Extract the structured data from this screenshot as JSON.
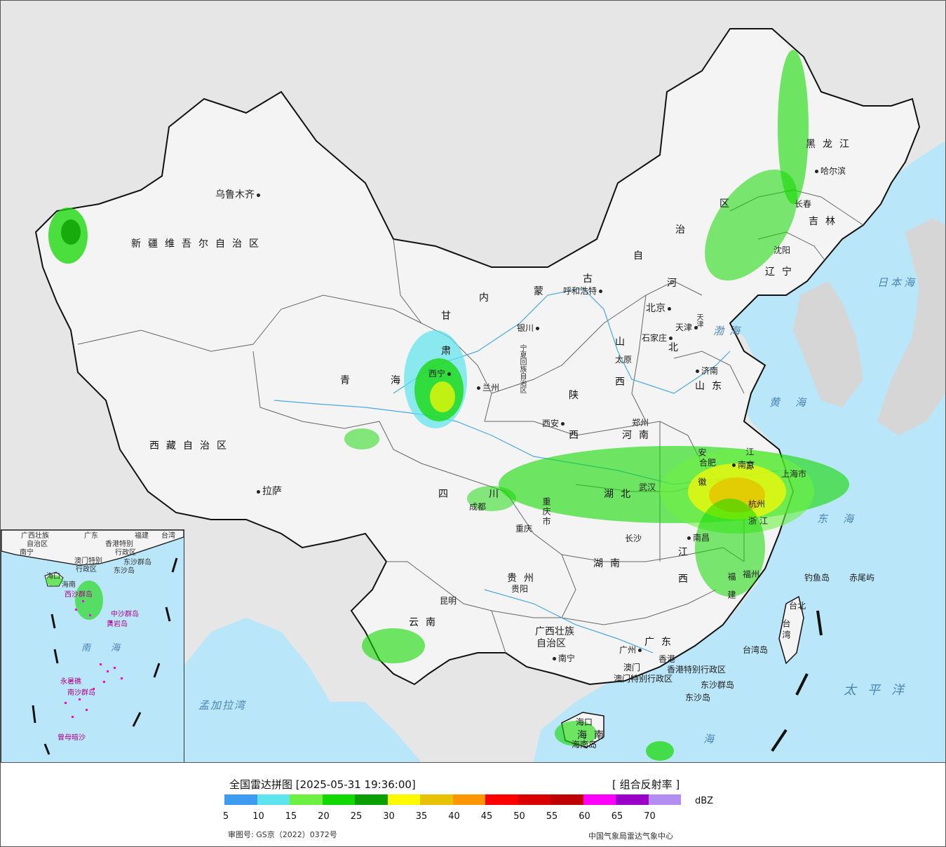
{
  "legend": {
    "title": "全国雷达拼图 [2025-05-31 19:36:00]",
    "product": "[ 组合反射率 ]",
    "unit": "dBZ",
    "colors": [
      "#3d9cf0",
      "#5de4ec",
      "#6ef043",
      "#12d800",
      "#0a9e00",
      "#fffa00",
      "#e6c200",
      "#ff9600",
      "#ff0000",
      "#da0000",
      "#c00000",
      "#ff00ff",
      "#9a00c8",
      "#b28ef0"
    ],
    "ticks": [
      "5",
      "10",
      "15",
      "20",
      "25",
      "30",
      "35",
      "40",
      "45",
      "50",
      "55",
      "60",
      "65",
      "70"
    ],
    "review_no": "审图号: GS京（2022）0372号",
    "credit": "中国气象局雷达气象中心"
  },
  "map": {
    "provinces": [
      {
        "id": "xinjiang",
        "text": "新疆维吾尔自治区"
      },
      {
        "id": "xizang",
        "text": "西藏自治区"
      },
      {
        "id": "qinghai1",
        "text": "青"
      },
      {
        "id": "qinghai2",
        "text": "海"
      },
      {
        "id": "gansu1",
        "text": "甘"
      },
      {
        "id": "nmg1",
        "text": "内"
      },
      {
        "id": "nmg2",
        "text": "蒙"
      },
      {
        "id": "nmg3",
        "text": "古"
      },
      {
        "id": "nmg4",
        "text": "自"
      },
      {
        "id": "nmg5",
        "text": "治"
      },
      {
        "id": "nmg6",
        "text": "区"
      },
      {
        "id": "hlj",
        "text": "黑龙江"
      },
      {
        "id": "jilin",
        "text": "吉林"
      },
      {
        "id": "liaoning",
        "text": "辽宁"
      },
      {
        "id": "hebei1",
        "text": "河"
      },
      {
        "id": "hebei2",
        "text": "北"
      },
      {
        "id": "shanxi1",
        "text": "山"
      },
      {
        "id": "shanxi2",
        "text": "西"
      },
      {
        "id": "shandong",
        "text": "山东"
      },
      {
        "id": "henan",
        "text": "河南"
      },
      {
        "id": "shaanxi1",
        "text": "陕"
      },
      {
        "id": "shaanxi2",
        "text": "西"
      },
      {
        "id": "sichuan1",
        "text": "四"
      },
      {
        "id": "sichuan2",
        "text": "川"
      },
      {
        "id": "chongqing",
        "text": "重庆市"
      },
      {
        "id": "hubei",
        "text": "湖北"
      },
      {
        "id": "hunan",
        "text": "湖南"
      },
      {
        "id": "jiangxi1",
        "text": "江"
      },
      {
        "id": "jiangxi2",
        "text": "西"
      },
      {
        "id": "anhui",
        "text": "安徽"
      },
      {
        "id": "jiangsu",
        "text": "江苏"
      },
      {
        "id": "zhejiang",
        "text": "浙江"
      },
      {
        "id": "fujian",
        "text": "福建"
      },
      {
        "id": "guizhou",
        "text": "贵州"
      },
      {
        "id": "yunnan",
        "text": "云南"
      },
      {
        "id": "gx1",
        "text": "广西壮族"
      },
      {
        "id": "gx2",
        "text": "自治区"
      },
      {
        "id": "guangdong",
        "text": "广东"
      },
      {
        "id": "hainan",
        "text": "海南"
      },
      {
        "id": "taiwan",
        "text": "台湾"
      },
      {
        "id": "shanghai",
        "text": "上海市"
      },
      {
        "id": "tianjin",
        "text": "天津"
      },
      {
        "id": "ningxia",
        "text": "宁夏回族自治区"
      },
      {
        "id": "hk",
        "text": "香港特别行政区"
      },
      {
        "id": "macao",
        "text": "澳门特别行政区"
      },
      {
        "id": "gansu2",
        "text": "肃"
      }
    ],
    "cities": [
      {
        "id": "urumqi",
        "text": "乌鲁木齐"
      },
      {
        "id": "lhasa",
        "text": "拉萨"
      },
      {
        "id": "xining",
        "text": "西宁"
      },
      {
        "id": "lanzhou",
        "text": "兰州"
      },
      {
        "id": "yinchuan",
        "text": "银川"
      },
      {
        "id": "hohhot",
        "text": "呼和浩特"
      },
      {
        "id": "beijing",
        "text": "北京"
      },
      {
        "id": "tianjin_c",
        "text": "天津"
      },
      {
        "id": "shijiazhuang",
        "text": "石家庄"
      },
      {
        "id": "taiyuan",
        "text": "太原"
      },
      {
        "id": "jinan",
        "text": "济南"
      },
      {
        "id": "zhengzhou",
        "text": "郑州"
      },
      {
        "id": "xian",
        "text": "西安"
      },
      {
        "id": "chengdu",
        "text": "成都"
      },
      {
        "id": "chongqing_c",
        "text": "重庆"
      },
      {
        "id": "wuhan",
        "text": "武汉"
      },
      {
        "id": "changsha",
        "text": "长沙"
      },
      {
        "id": "nanchang",
        "text": "南昌"
      },
      {
        "id": "hefei",
        "text": "合肥"
      },
      {
        "id": "nanjing",
        "text": "南京"
      },
      {
        "id": "hangzhou",
        "text": "杭州"
      },
      {
        "id": "fuzhou",
        "text": "福州"
      },
      {
        "id": "guiyang",
        "text": "贵阳"
      },
      {
        "id": "kunming",
        "text": "昆明"
      },
      {
        "id": "nanning",
        "text": "南宁"
      },
      {
        "id": "guangzhou",
        "text": "广州"
      },
      {
        "id": "hongkong",
        "text": "香港"
      },
      {
        "id": "macau",
        "text": "澳门"
      },
      {
        "id": "haikou",
        "text": "海口"
      },
      {
        "id": "taipei",
        "text": "台北"
      },
      {
        "id": "shenyang",
        "text": "沈阳"
      },
      {
        "id": "changchun",
        "text": "长春"
      },
      {
        "id": "harbin",
        "text": "哈尔滨"
      }
    ],
    "seas": [
      {
        "id": "bohai",
        "text": "渤海"
      },
      {
        "id": "yellow_sea",
        "text": "黄海"
      },
      {
        "id": "east_sea",
        "text": "东海"
      },
      {
        "id": "pacific",
        "text": "太平洋"
      },
      {
        "id": "sea_of_japan",
        "text": "日本海"
      },
      {
        "id": "bay_of_bengal",
        "text": "孟加拉湾"
      },
      {
        "id": "south_sea_main",
        "text": "海"
      }
    ],
    "islands": [
      {
        "id": "diaoyu",
        "text": "钓鱼岛"
      },
      {
        "id": "chiwei",
        "text": "赤尾屿"
      },
      {
        "id": "taiwan_island",
        "text": "台湾岛"
      },
      {
        "id": "dongsha_qd",
        "text": "东沙群岛"
      },
      {
        "id": "dongsha_d",
        "text": "东沙岛"
      },
      {
        "id": "hainan_island",
        "text": "海南岛"
      }
    ],
    "inset": {
      "labels": [
        {
          "id": "in_gx",
          "text": "广西壮族"
        },
        {
          "id": "in_zzq",
          "text": "自治区"
        },
        {
          "id": "in_gd",
          "text": "广东"
        },
        {
          "id": "in_fj",
          "text": "福建"
        },
        {
          "id": "in_tw",
          "text": "台湾"
        },
        {
          "id": "in_nn",
          "text": "南宁"
        },
        {
          "id": "in_hk",
          "text": "香港特别"
        },
        {
          "id": "in_hk2",
          "text": "行政区"
        },
        {
          "id": "in_mo",
          "text": "澳门特别"
        },
        {
          "id": "in_mo2",
          "text": "行政区"
        },
        {
          "id": "in_dsqd",
          "text": "东沙群岛"
        },
        {
          "id": "in_dsd",
          "text": "东沙岛"
        },
        {
          "id": "in_hk3",
          "text": "海口"
        },
        {
          "id": "in_hn",
          "text": "海南"
        },
        {
          "id": "in_xsqd",
          "text": "西沙群岛"
        },
        {
          "id": "in_zsqd",
          "text": "中沙群岛"
        },
        {
          "id": "in_hyd",
          "text": "黄岩岛"
        },
        {
          "id": "in_nh1",
          "text": "南"
        },
        {
          "id": "in_nh2",
          "text": "海"
        },
        {
          "id": "in_nsqd",
          "text": "南沙群岛"
        },
        {
          "id": "in_ysa",
          "text": "永暑礁"
        },
        {
          "id": "in_zmans",
          "text": "曾母暗沙"
        }
      ]
    }
  }
}
